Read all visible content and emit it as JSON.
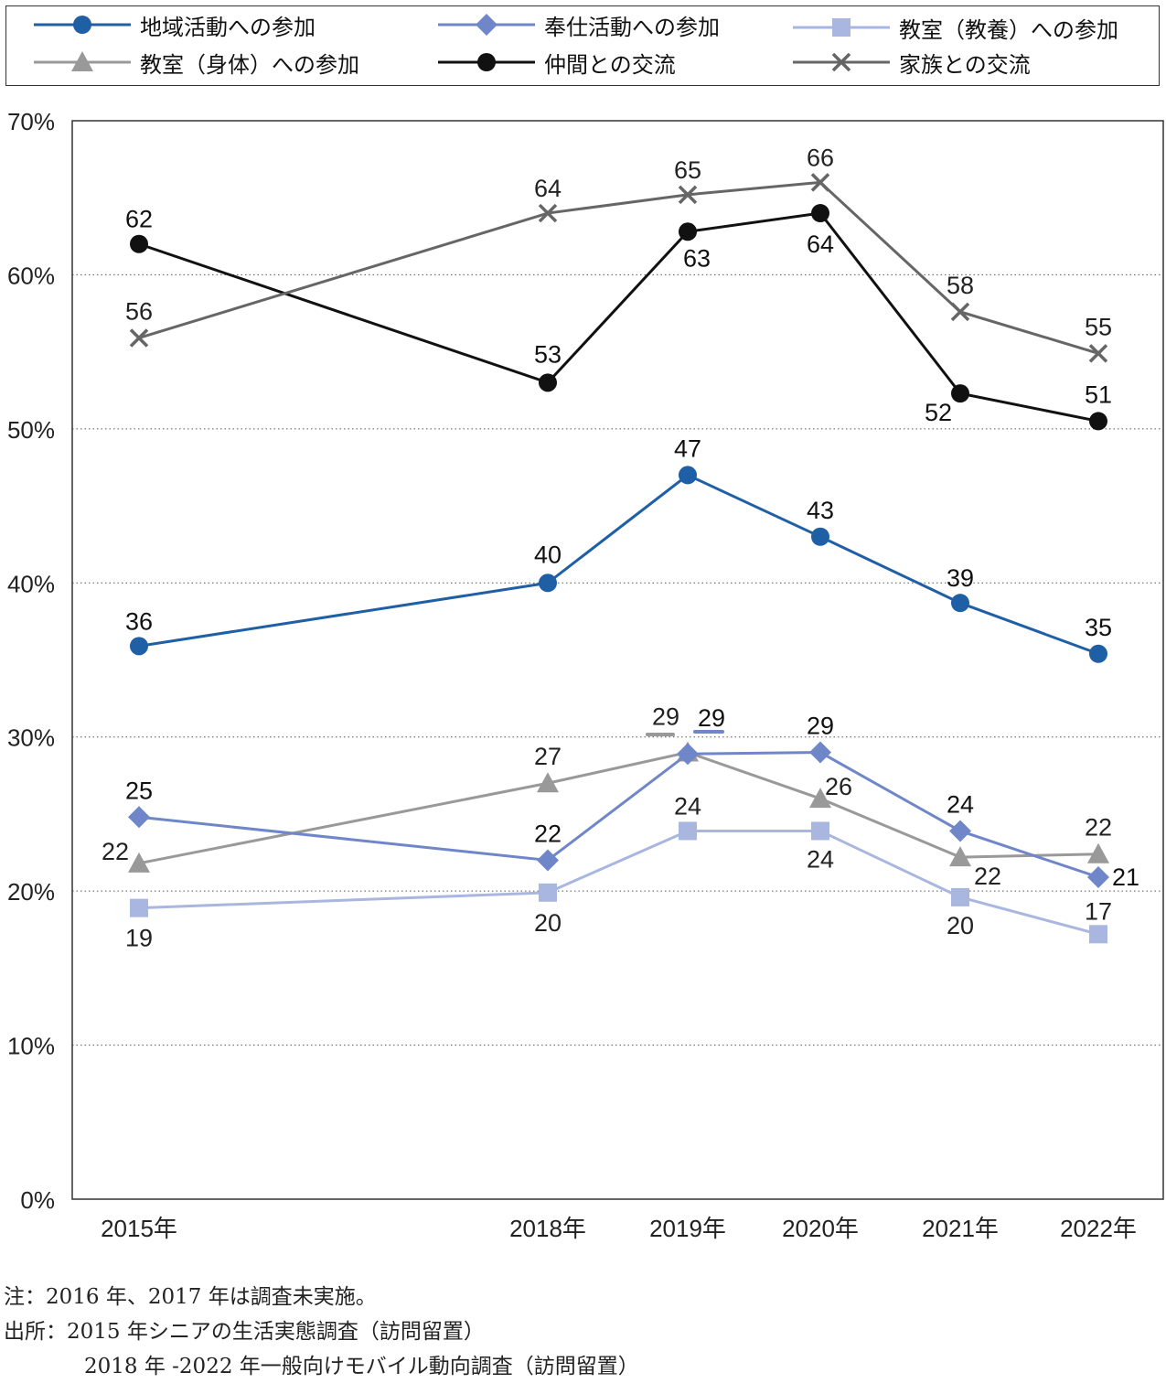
{
  "chart_data": {
    "type": "line",
    "categories": [
      "2015年",
      "2018年",
      "2019年",
      "2020年",
      "2021年",
      "2022年"
    ],
    "ylim": [
      0,
      70
    ],
    "y_ticks": [
      "0%",
      "10%",
      "20%",
      "30%",
      "40%",
      "50%",
      "60%",
      "70%"
    ],
    "grid": "horizontal dotted",
    "legend_position": "top",
    "series": [
      {
        "name": "地域活動への参加",
        "color": "#1f5fa6",
        "marker": "circle",
        "values": [
          35.9,
          40.0,
          47.0,
          43.0,
          38.7,
          35.4
        ],
        "labels": [
          "36",
          "40",
          "47",
          "43",
          "39",
          "35"
        ]
      },
      {
        "name": "奉仕活動への参加",
        "color": "#6f86c8",
        "marker": "diamond",
        "values": [
          24.8,
          22.0,
          28.9,
          29.0,
          23.9,
          20.9
        ],
        "labels": [
          "25",
          "22",
          "29",
          "29",
          "24",
          "21"
        ]
      },
      {
        "name": "教室（教養）への参加",
        "color": "#a9b6df",
        "marker": "square",
        "values": [
          18.9,
          19.9,
          23.9,
          23.9,
          19.6,
          17.2
        ],
        "labels": [
          "19",
          "20",
          "24",
          "24",
          "20",
          "17"
        ]
      },
      {
        "name": "教室（身体）への参加",
        "color": "#999999",
        "marker": "triangle",
        "values": [
          21.8,
          27.0,
          29.0,
          26.0,
          22.2,
          22.4
        ],
        "labels": [
          "22",
          "27",
          "29",
          "26",
          "22",
          "22"
        ]
      },
      {
        "name": "仲間との交流",
        "color": "#111111",
        "marker": "circle",
        "values": [
          62.0,
          53.0,
          62.8,
          64.0,
          52.3,
          50.5
        ],
        "labels": [
          "62",
          "53",
          "63",
          "64",
          "52",
          "51"
        ]
      },
      {
        "name": "家族との交流",
        "color": "#666666",
        "marker": "x",
        "values": [
          55.9,
          64.0,
          65.2,
          66.0,
          57.6,
          54.9
        ],
        "labels": [
          "56",
          "64",
          "65",
          "66",
          "58",
          "55"
        ]
      }
    ]
  },
  "notes": [
    "注：2016 年、2017 年は調査未実施。",
    "出所：2015 年シニアの生活実態調査（訪問留置）",
    "2018 年 -2022 年一般向けモバイル動向調査（訪問留置）"
  ]
}
